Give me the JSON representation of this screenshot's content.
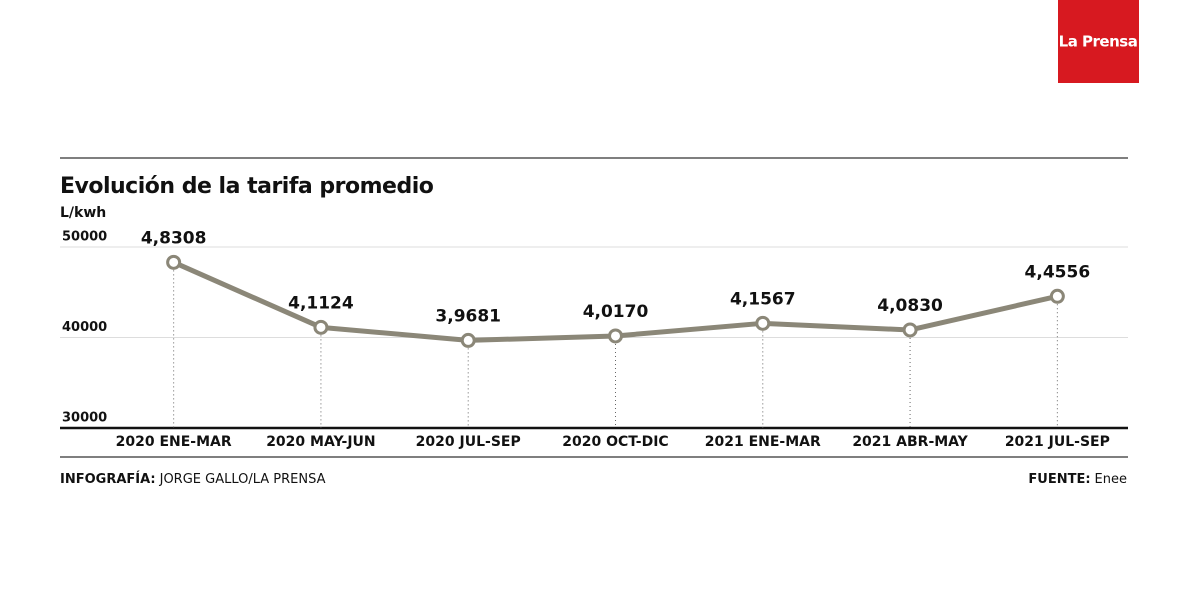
{
  "chart_data": {
    "type": "line",
    "title": "Evolución de la tarifa promedio",
    "y_label": "L/kwh",
    "categories": [
      "2020 ENE-MAR",
      "2020 MAY-JUN",
      "2020 JUL-SEP",
      "2020 OCT-DIC",
      "2021 ENE-MAR",
      "2021 ABR-MAY",
      "2021 JUL-SEP"
    ],
    "series": [
      {
        "color": "#8b8778",
        "values": [
          48308,
          41124,
          39681,
          40170,
          41567,
          40830,
          44556
        ],
        "value_labels": [
          "4,8308",
          "4,1124",
          "3,9681",
          "4,0170",
          "4,1567",
          "4,0830",
          "4,4556"
        ]
      }
    ],
    "ylim": [
      30000,
      50000
    ],
    "yticks": [
      30000,
      40000,
      50000
    ],
    "grid": true,
    "credit_label": "INFOGRAFÍA:",
    "credit": "JORGE GALLO/LA PRENSA",
    "source_label": "FUENTE:",
    "source": "Enee",
    "logo": "La Prensa"
  }
}
